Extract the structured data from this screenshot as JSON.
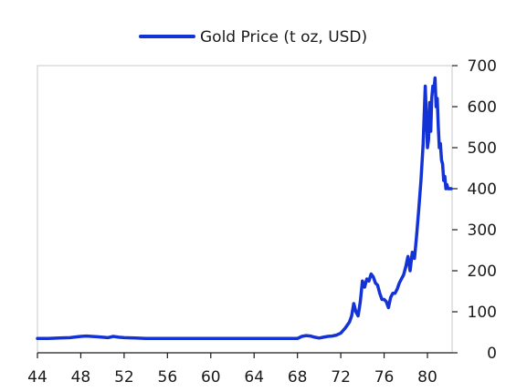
{
  "chart_data": {
    "type": "line",
    "legend": {
      "position": "top-center"
    },
    "grid": false,
    "y_axis_side": "right",
    "xlim": [
      44,
      82.2
    ],
    "ylim": [
      0,
      700
    ],
    "x_ticks": [
      44,
      48,
      52,
      56,
      60,
      64,
      68,
      72,
      76,
      80
    ],
    "x_tick_labels": [
      "44",
      "48",
      "52",
      "56",
      "60",
      "64",
      "68",
      "72",
      "76",
      "80"
    ],
    "y_ticks": [
      0,
      100,
      200,
      300,
      400,
      500,
      600,
      700
    ],
    "y_tick_labels": [
      "0",
      "100",
      "200",
      "300",
      "400",
      "500",
      "600",
      "700"
    ],
    "series": [
      {
        "name": "Gold Price (t oz, USD)",
        "color": "#1433d6",
        "x": [
          44,
          45,
          46,
          47,
          48,
          48.5,
          49,
          49.5,
          50,
          50.5,
          51,
          51.5,
          52,
          53,
          54,
          55,
          56,
          58,
          60,
          62,
          64,
          66,
          67,
          68,
          68.4,
          68.8,
          69.2,
          69.6,
          70,
          70.4,
          70.8,
          71.2,
          71.6,
          72,
          72.4,
          72.8,
          73.0,
          73.2,
          73.4,
          73.6,
          73.8,
          74.0,
          74.2,
          74.4,
          74.6,
          74.8,
          75.0,
          75.2,
          75.4,
          75.6,
          75.8,
          76.0,
          76.2,
          76.4,
          76.6,
          76.8,
          77.0,
          77.2,
          77.4,
          77.6,
          77.8,
          78.0,
          78.2,
          78.4,
          78.6,
          78.8,
          79.0,
          79.2,
          79.4,
          79.6,
          79.8,
          80.0,
          80.1,
          80.2,
          80.3,
          80.4,
          80.5,
          80.6,
          80.7,
          80.8,
          80.9,
          81.0,
          81.1,
          81.2,
          81.3,
          81.4,
          81.5,
          81.6,
          81.7,
          81.8,
          81.9,
          82.0,
          82.2
        ],
        "values": [
          35,
          35,
          36,
          37,
          40,
          41,
          40,
          39,
          38,
          37,
          40,
          38,
          37,
          36,
          35,
          35,
          35,
          35,
          35,
          35,
          35,
          35,
          35,
          35,
          40,
          42,
          41,
          38,
          36,
          38,
          40,
          41,
          43,
          48,
          60,
          75,
          90,
          120,
          100,
          90,
          125,
          175,
          160,
          180,
          175,
          192,
          185,
          170,
          165,
          145,
          130,
          130,
          125,
          110,
          135,
          145,
          145,
          155,
          170,
          180,
          190,
          210,
          235,
          200,
          245,
          230,
          285,
          350,
          420,
          510,
          650,
          500,
          520,
          610,
          540,
          620,
          650,
          640,
          670,
          600,
          620,
          550,
          500,
          510,
          470,
          460,
          420,
          430,
          400,
          410,
          400,
          400,
          400
        ]
      }
    ]
  }
}
